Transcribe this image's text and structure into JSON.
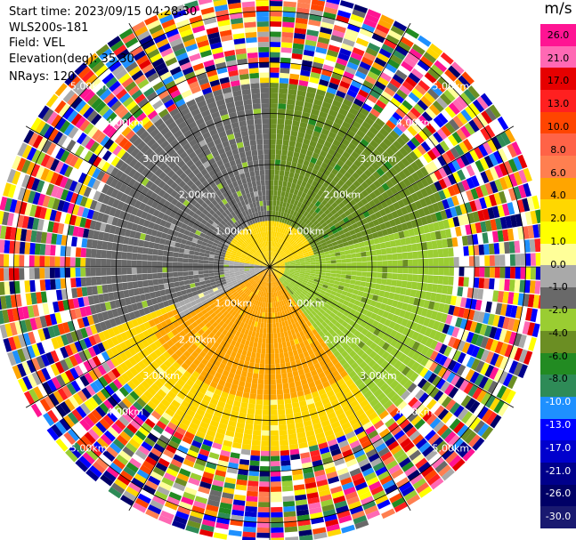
{
  "header": {
    "start_time": "Start time: 2023/09/15 04:28:30",
    "instrument": "WLS200s-181",
    "field": "Field: VEL",
    "elevation": "Elevation(deg): 35.30",
    "nrays": "NRays: 120"
  },
  "colorbar": {
    "unit": "m/s",
    "ticks": [
      "26.0",
      "21.0",
      "17.0",
      "13.0",
      "10.0",
      "8.0",
      "6.0",
      "4.0",
      "2.0",
      "1.0",
      "0.0",
      "-1.0",
      "-2.0",
      "-4.0",
      "-6.0",
      "-8.0",
      "-10.0",
      "-13.0",
      "-17.0",
      "-21.0",
      "-26.0",
      "-30.0"
    ],
    "colors": [
      "#ff1493",
      "#ff69b4",
      "#e60000",
      "#ff2020",
      "#ff4500",
      "#ff6347",
      "#ff7f50",
      "#ffa500",
      "#ffd700",
      "#ffff00",
      "#ffff99",
      "#a9a9a9",
      "#696969",
      "#9acd32",
      "#6b8e23",
      "#228b22",
      "#2e8b57",
      "#1e90ff",
      "#0000ff",
      "#0000cd",
      "#00008b",
      "#000066",
      "#191970"
    ]
  },
  "chart_data": {
    "type": "ppi",
    "field": "VEL",
    "units": "m/s",
    "n_rays": 120,
    "range_rings_km": [
      1.0,
      2.0,
      3.0,
      4.0,
      5.0
    ],
    "ring_labels": [
      "1.00km",
      "2.00km",
      "3.00km",
      "4.00km",
      "5.00km"
    ],
    "velocity_regions": [
      {
        "azimuth_deg": [
          250,
          360
        ],
        "range_km": [
          0.8,
          3.6
        ],
        "velocity_ms": -2.0
      },
      {
        "azimuth_deg": [
          0,
          75
        ],
        "range_km": [
          0.8,
          3.6
        ],
        "velocity_ms": -6.0
      },
      {
        "azimuth_deg": [
          75,
          145
        ],
        "range_km": [
          0.3,
          3.6
        ],
        "velocity_ms": -4.0
      },
      {
        "azimuth_deg": [
          240,
          280
        ],
        "range_km": [
          0.0,
          2.0
        ],
        "velocity_ms": -1.0
      },
      {
        "azimuth_deg": [
          95,
          145
        ],
        "range_km": [
          1.0,
          3.6
        ],
        "velocity_ms": -1.0
      },
      {
        "azimuth_deg": [
          145,
          245
        ],
        "range_km": [
          0.0,
          2.6
        ],
        "velocity_ms": 4.0
      },
      {
        "azimuth_deg": [
          100,
          290
        ],
        "range_km": [
          0.0,
          3.6
        ],
        "velocity_ms": 2.0
      }
    ],
    "noise_range_km": [
      3.6,
      5.5
    ],
    "grid": true
  }
}
